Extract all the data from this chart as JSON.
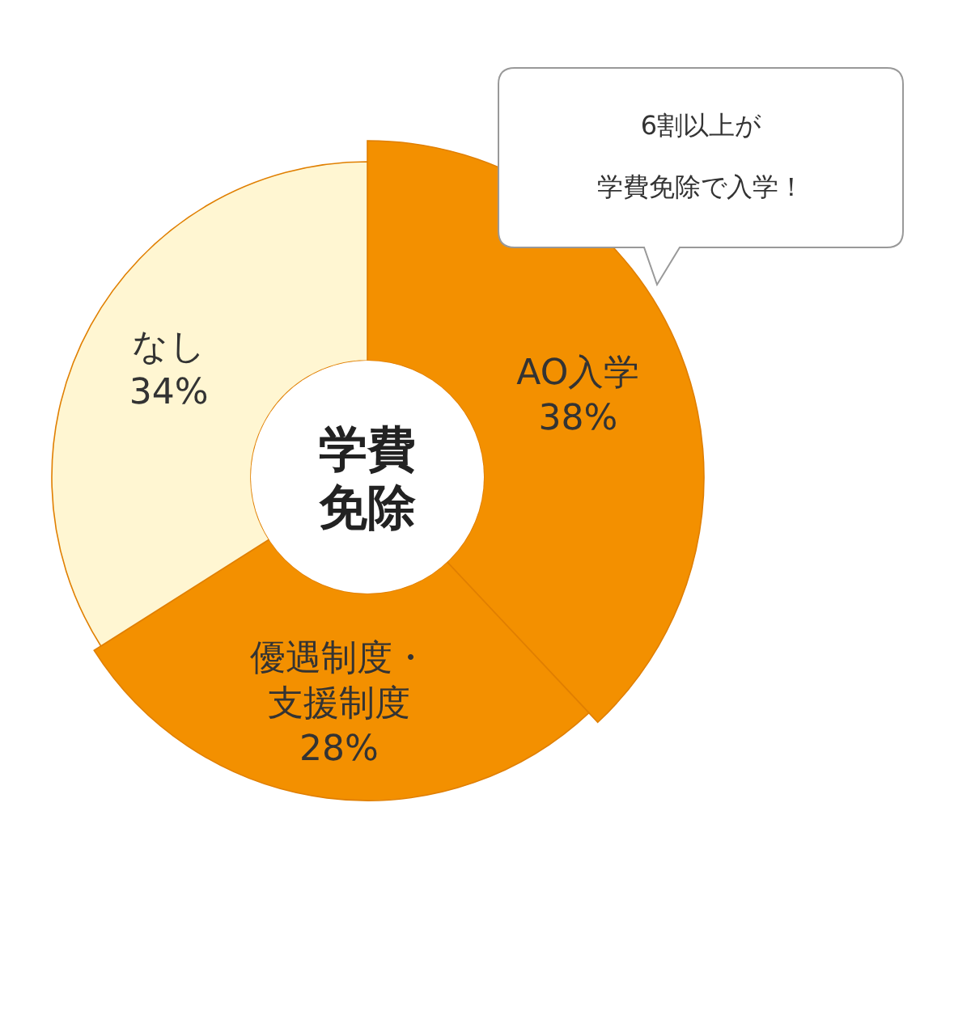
{
  "chart_data": {
    "type": "donut",
    "title": "学費免除",
    "categories": [
      "AO入学",
      "優遇制度・支援制度",
      "なし"
    ],
    "values": [
      38,
      28,
      34
    ],
    "colors": [
      "#f39000",
      "#f39000",
      "#fff6d2"
    ],
    "value_labels": [
      "38%",
      "28%",
      "34%"
    ],
    "annotations": [
      "6割以上が学費免除で入学！"
    ]
  }
}
